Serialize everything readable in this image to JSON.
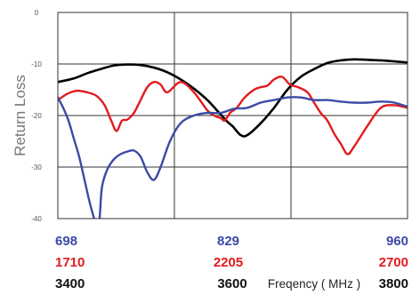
{
  "chart_data": {
    "type": "line",
    "title": "",
    "ylabel": "Return Loss",
    "xlabel": "Freqency ( MHz )",
    "ylim": [
      -40,
      0
    ],
    "yticks": [
      0,
      -10,
      -20,
      -30,
      -40
    ],
    "grid": true,
    "x_axis_rows": [
      {
        "ticks": [
          "698",
          "829",
          "960"
        ],
        "color": "#3b4aa6"
      },
      {
        "ticks": [
          "1710",
          "2205",
          "2700"
        ],
        "color": "#e31a1c"
      },
      {
        "ticks": [
          "3400",
          "3600",
          "3800"
        ],
        "color": "#111111"
      }
    ],
    "series": [
      {
        "color": "#000000",
        "x": [
          698,
          710,
          720,
          730,
          740,
          750,
          760,
          770,
          780,
          790,
          800,
          810,
          820,
          825,
          829,
          835,
          840,
          850,
          860,
          870,
          880,
          890,
          900,
          910,
          920,
          930,
          940,
          950,
          960
        ],
        "y": [
          -13.5,
          -12.8,
          -11.8,
          -11,
          -10.3,
          -10.1,
          -10.2,
          -10.7,
          -11.6,
          -13,
          -14.8,
          -17,
          -19.8,
          -21.2,
          -22.1,
          -23.8,
          -23.8,
          -21.5,
          -18.5,
          -15,
          -12.5,
          -11,
          -9.8,
          -9.3,
          -9.1,
          -9.2,
          -9.3,
          -9.5,
          -9.7
        ]
      },
      {
        "color": "#e31a1c",
        "x": [
          698,
          705,
          712,
          720,
          727,
          733,
          738,
          742,
          746,
          750,
          755,
          760,
          765,
          770,
          775,
          780,
          790,
          800,
          810,
          815,
          820,
          823,
          827,
          832,
          838,
          845,
          850,
          855,
          860,
          866,
          872,
          878,
          885,
          890,
          895,
          900,
          905,
          910,
          915,
          920,
          930,
          940,
          950,
          960
        ],
        "y": [
          -17,
          -15.8,
          -15.2,
          -15.5,
          -16.2,
          -18,
          -21,
          -23,
          -21,
          -20.8,
          -19.5,
          -17,
          -14.5,
          -13.5,
          -14,
          -15.5,
          -13.5,
          -15.5,
          -19,
          -20,
          -20.5,
          -21,
          -19.5,
          -18.5,
          -16.5,
          -15,
          -14.5,
          -14.2,
          -13,
          -12.5,
          -14,
          -14.5,
          -15.5,
          -17.5,
          -19.5,
          -21,
          -23.5,
          -25.5,
          -27.5,
          -26,
          -22,
          -18.5,
          -18,
          -18.5
        ]
      },
      {
        "color": "#3b4aa6",
        "x": [
          698,
          702,
          706,
          710,
          714,
          718,
          722,
          726,
          729,
          731,
          735,
          740,
          745,
          750,
          755,
          760,
          765,
          770,
          775,
          782,
          790,
          800,
          810,
          820,
          830,
          840,
          850,
          860,
          870,
          880,
          890,
          900,
          910,
          920,
          930,
          940,
          950,
          960
        ],
        "y": [
          -16.5,
          -18.5,
          -21,
          -24.5,
          -28,
          -32.5,
          -37,
          -40.5,
          -40.5,
          -34,
          -30.5,
          -28.5,
          -27.5,
          -27,
          -26.8,
          -28,
          -31,
          -32.5,
          -30,
          -25,
          -21.5,
          -20,
          -19.5,
          -19.5,
          -18.7,
          -18.5,
          -17.5,
          -17,
          -16.5,
          -16.5,
          -17,
          -17,
          -17.3,
          -17.5,
          -17.5,
          -17.3,
          -17.5,
          -18.3
        ]
      }
    ]
  }
}
